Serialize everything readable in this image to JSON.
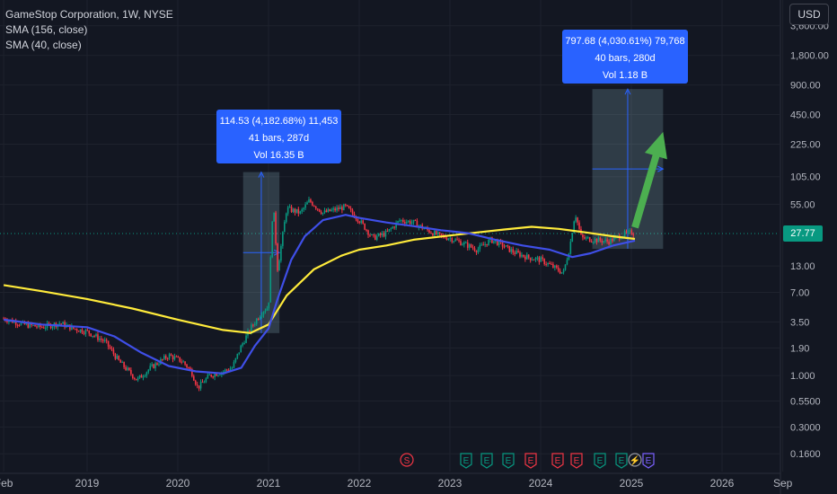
{
  "header": {
    "title": "GameStop Corporation, 1W, NYSE",
    "indicators": [
      "SMA (156, close)",
      "SMA (40, close)"
    ],
    "currency_button": "USD"
  },
  "last_price": "27.77",
  "colors": {
    "background": "#131722",
    "up": "#089981",
    "down": "#f23645",
    "sma156": "#ffeb3b",
    "sma40": "#3f4fe8",
    "measure_box": "#2962ff",
    "arrow": "#4caf50"
  },
  "measurements": [
    {
      "line1": "114.53 (4,182.68%) 11,453",
      "line2": "41 bars, 287d",
      "line3": "Vol 16.35 B"
    },
    {
      "line1": "797.68 (4,030.61%) 79,768",
      "line2": "40 bars, 280d",
      "line3": "Vol 1.18 B"
    }
  ],
  "event_markers": [
    {
      "label": "S",
      "color": "#f23645"
    },
    {
      "label": "E",
      "color": "#089981"
    },
    {
      "label": "E",
      "color": "#089981"
    },
    {
      "label": "E",
      "color": "#089981"
    },
    {
      "label": "E",
      "color": "#f23645"
    },
    {
      "label": "E",
      "color": "#f23645"
    },
    {
      "label": "E",
      "color": "#f23645"
    },
    {
      "label": "E",
      "color": "#089981"
    },
    {
      "label": "E",
      "color": "#089981"
    },
    {
      "label": "⚡",
      "color": "#9598a1"
    },
    {
      "label": "E",
      "color": "#7b61ff"
    }
  ],
  "chart_data": {
    "type": "candlestick",
    "title": "GameStop Corporation, 1W, NYSE",
    "y_scale": "log",
    "y_ticks": [
      "3,600.00",
      "1,800.00",
      "900.00",
      "450.00",
      "225.00",
      "105.00",
      "55.00",
      "13.00",
      "7.00",
      "3.50",
      "1.90",
      "1.000",
      "0.5500",
      "0.3000",
      "0.1600"
    ],
    "y_tick_values": [
      3600,
      1800,
      900,
      450,
      225,
      105,
      55,
      13,
      7,
      3.5,
      1.9,
      1.0,
      0.55,
      0.3,
      0.16
    ],
    "x_ticks": [
      "Feb",
      "2019",
      "2020",
      "2021",
      "2022",
      "2023",
      "2024",
      "2025",
      "2026",
      "Sep"
    ],
    "x_tick_dates": [
      2018.08,
      2019.0,
      2020.0,
      2021.0,
      2022.0,
      2023.0,
      2024.0,
      2025.0,
      2026.0,
      2026.67
    ],
    "x_range": [
      2018.08,
      2026.75
    ],
    "last_price": 27.77,
    "price_path": [
      [
        2018.08,
        3.8
      ],
      [
        2018.3,
        3.3
      ],
      [
        2018.5,
        3.1
      ],
      [
        2018.7,
        3.4
      ],
      [
        2018.85,
        3.0
      ],
      [
        2019.0,
        2.8
      ],
      [
        2019.2,
        2.2
      ],
      [
        2019.35,
        1.4
      ],
      [
        2019.55,
        0.9
      ],
      [
        2019.7,
        1.2
      ],
      [
        2019.9,
        1.6
      ],
      [
        2020.05,
        1.4
      ],
      [
        2020.15,
        1.1
      ],
      [
        2020.22,
        0.75
      ],
      [
        2020.35,
        1.0
      ],
      [
        2020.5,
        1.1
      ],
      [
        2020.6,
        1.2
      ],
      [
        2020.7,
        2.0
      ],
      [
        2020.8,
        3.0
      ],
      [
        2020.93,
        4.5
      ],
      [
        2021.0,
        5.0
      ],
      [
        2021.05,
        60.0
      ],
      [
        2021.1,
        12.0
      ],
      [
        2021.2,
        50.0
      ],
      [
        2021.35,
        45.0
      ],
      [
        2021.45,
        60.0
      ],
      [
        2021.6,
        45.0
      ],
      [
        2021.85,
        52.0
      ],
      [
        2022.0,
        38.0
      ],
      [
        2022.15,
        25.0
      ],
      [
        2022.3,
        28.0
      ],
      [
        2022.45,
        38.0
      ],
      [
        2022.6,
        36.0
      ],
      [
        2022.75,
        30.0
      ],
      [
        2022.9,
        26.0
      ],
      [
        2023.0,
        25.0
      ],
      [
        2023.15,
        22.0
      ],
      [
        2023.3,
        19.0
      ],
      [
        2023.45,
        24.0
      ],
      [
        2023.55,
        22.0
      ],
      [
        2023.7,
        18.0
      ],
      [
        2023.85,
        16.0
      ],
      [
        2024.0,
        15.0
      ],
      [
        2024.12,
        13.0
      ],
      [
        2024.25,
        11.0
      ],
      [
        2024.32,
        20.0
      ],
      [
        2024.38,
        45.0
      ],
      [
        2024.45,
        25.0
      ],
      [
        2024.6,
        24.0
      ],
      [
        2024.75,
        23.0
      ],
      [
        2024.9,
        27.0
      ],
      [
        2025.0,
        28.5
      ],
      [
        2025.04,
        27.77
      ]
    ],
    "sma156": [
      [
        2018.08,
        8.3
      ],
      [
        2018.5,
        7.2
      ],
      [
        2019.0,
        6.0
      ],
      [
        2019.5,
        4.8
      ],
      [
        2020.0,
        3.7
      ],
      [
        2020.5,
        2.9
      ],
      [
        2020.8,
        2.7
      ],
      [
        2021.0,
        3.3
      ],
      [
        2021.2,
        6.5
      ],
      [
        2021.5,
        12.0
      ],
      [
        2021.8,
        16.5
      ],
      [
        2022.0,
        19.0
      ],
      [
        2022.3,
        21.0
      ],
      [
        2022.6,
        24.0
      ],
      [
        2023.0,
        26.5
      ],
      [
        2023.3,
        28.5
      ],
      [
        2023.6,
        30.5
      ],
      [
        2023.9,
        32.5
      ],
      [
        2024.2,
        31.0
      ],
      [
        2024.5,
        28.5
      ],
      [
        2024.8,
        26.0
      ],
      [
        2025.04,
        24.5
      ]
    ],
    "sma40": [
      [
        2018.08,
        3.7
      ],
      [
        2018.5,
        3.3
      ],
      [
        2019.0,
        3.1
      ],
      [
        2019.3,
        2.5
      ],
      [
        2019.6,
        1.7
      ],
      [
        2019.9,
        1.25
      ],
      [
        2020.2,
        1.1
      ],
      [
        2020.5,
        1.05
      ],
      [
        2020.7,
        1.2
      ],
      [
        2020.85,
        2.0
      ],
      [
        2021.0,
        3.0
      ],
      [
        2021.1,
        6.0
      ],
      [
        2021.25,
        15.0
      ],
      [
        2021.4,
        26.0
      ],
      [
        2021.6,
        38.0
      ],
      [
        2021.85,
        43.0
      ],
      [
        2022.0,
        40.0
      ],
      [
        2022.3,
        36.0
      ],
      [
        2022.6,
        33.0
      ],
      [
        2022.9,
        30.0
      ],
      [
        2023.2,
        28.0
      ],
      [
        2023.5,
        24.0
      ],
      [
        2023.8,
        21.0
      ],
      [
        2024.1,
        19.0
      ],
      [
        2024.35,
        16.0
      ],
      [
        2024.55,
        17.5
      ],
      [
        2024.8,
        21.0
      ],
      [
        2025.04,
        23.5
      ]
    ],
    "measure_ranges": [
      {
        "start": 2020.72,
        "end": 2021.12,
        "low": 2.7,
        "high": 117.0
      },
      {
        "start": 2024.57,
        "end": 2025.35,
        "low": 19.4,
        "high": 817.0
      }
    ],
    "projection_arrow": {
      "from": [
        2025.04,
        32.0
      ],
      "to": [
        2025.35,
        300.0
      ]
    }
  }
}
